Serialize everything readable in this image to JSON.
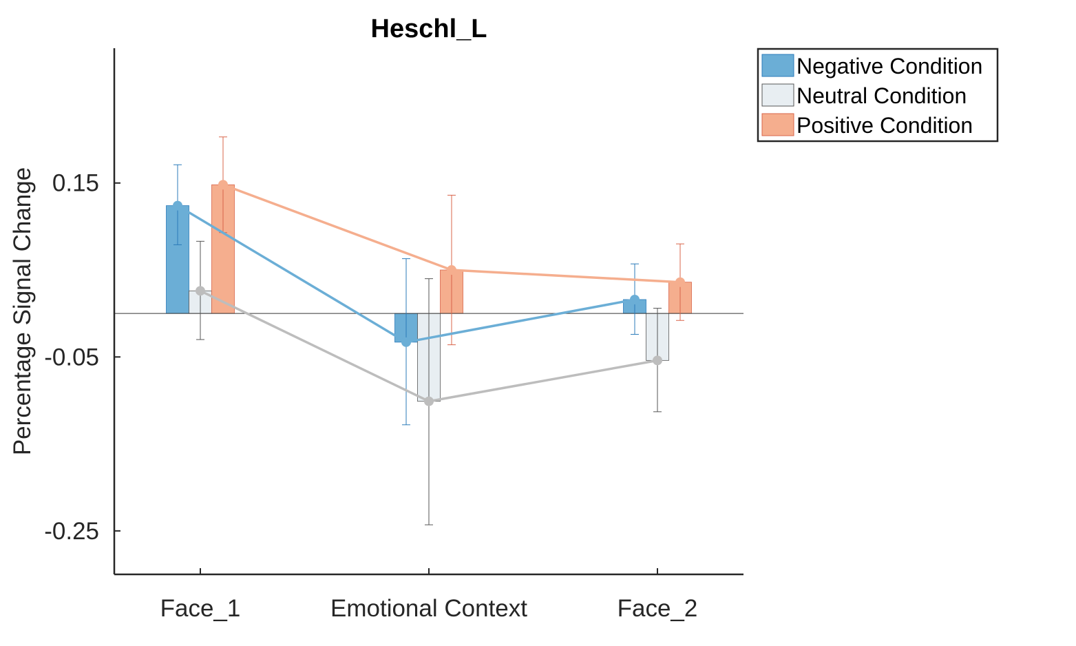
{
  "chart_data": {
    "type": "bar",
    "title": "Heschl_L",
    "xlabel": "",
    "ylabel": "Percentage Signal Change",
    "categories": [
      "Face_1",
      "Emotional Context",
      "Face_2"
    ],
    "yticks": [
      0.15,
      -0.05,
      -0.25
    ],
    "ytick_labels": [
      "0.15",
      "-0.05",
      "-0.25"
    ],
    "ylim": [
      -0.3,
      0.305
    ],
    "grid": false,
    "legend_position": "outside-top-right",
    "overlay": "line-with-markers-connecting-bar-tops",
    "series": [
      {
        "name": "Negative Condition",
        "color": "#6BAED6",
        "edge": "#2B7BBA",
        "values": [
          0.124,
          -0.033,
          0.016
        ],
        "error_low": [
          0.079,
          -0.128,
          -0.024
        ],
        "error_high": [
          0.171,
          0.063,
          0.057
        ]
      },
      {
        "name": "Neutral Condition",
        "color": "#E8EEF2",
        "edge": "#555555",
        "values": [
          0.026,
          -0.101,
          -0.054
        ],
        "error_low": [
          -0.03,
          -0.243,
          -0.113
        ],
        "error_high": [
          0.083,
          0.04,
          0.006
        ]
      },
      {
        "name": "Positive Condition",
        "color": "#F5AE8E",
        "edge": "#D9644A",
        "values": [
          0.148,
          0.05,
          0.036
        ],
        "error_low": [
          0.093,
          -0.036,
          -0.008
        ],
        "error_high": [
          0.203,
          0.136,
          0.08
        ]
      }
    ]
  }
}
